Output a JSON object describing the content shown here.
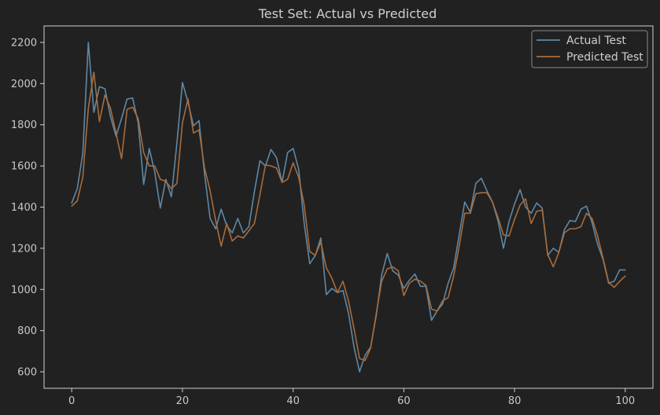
{
  "chart_data": {
    "type": "line",
    "title": "Test Set: Actual vs Predicted",
    "xlabel": "",
    "ylabel": "",
    "xlim": [
      -5,
      105
    ],
    "ylim": [
      520,
      2280
    ],
    "xticks": [
      0,
      20,
      40,
      60,
      80,
      100
    ],
    "yticks": [
      600,
      800,
      1000,
      1200,
      1400,
      1600,
      1800,
      2000,
      2200
    ],
    "grid": false,
    "legend_position": "top-right",
    "series": [
      {
        "name": "Actual Test",
        "color": "#5f88a6",
        "values": [
          1420,
          1490,
          1660,
          2200,
          1860,
          1985,
          1975,
          1840,
          1745,
          1830,
          1925,
          1930,
          1810,
          1510,
          1685,
          1570,
          1395,
          1535,
          1450,
          1710,
          2005,
          1910,
          1795,
          1820,
          1560,
          1345,
          1295,
          1390,
          1310,
          1275,
          1345,
          1275,
          1305,
          1475,
          1625,
          1600,
          1680,
          1640,
          1520,
          1665,
          1685,
          1585,
          1320,
          1125,
          1165,
          1250,
          975,
          1005,
          985,
          995,
          885,
          720,
          600,
          680,
          720,
          870,
          1070,
          1175,
          1090,
          1070,
          1005,
          1045,
          1075,
          1015,
          1015,
          850,
          895,
          930,
          1030,
          1105,
          1265,
          1425,
          1375,
          1515,
          1540,
          1480,
          1425,
          1335,
          1200,
          1330,
          1415,
          1485,
          1400,
          1370,
          1420,
          1395,
          1165,
          1200,
          1180,
          1290,
          1335,
          1330,
          1390,
          1405,
          1325,
          1220,
          1145,
          1030,
          1040,
          1095,
          1095
        ]
      },
      {
        "name": "Predicted Test",
        "color": "#a86c3c",
        "values": [
          1405,
          1430,
          1545,
          1880,
          2055,
          1815,
          1945,
          1880,
          1760,
          1635,
          1875,
          1885,
          1830,
          1665,
          1600,
          1600,
          1535,
          1525,
          1490,
          1515,
          1810,
          1925,
          1760,
          1775,
          1590,
          1480,
          1335,
          1210,
          1320,
          1235,
          1260,
          1250,
          1285,
          1320,
          1460,
          1605,
          1600,
          1590,
          1520,
          1535,
          1615,
          1545,
          1410,
          1185,
          1165,
          1230,
          1105,
          1055,
          985,
          1040,
          945,
          810,
          665,
          655,
          715,
          880,
          1040,
          1100,
          1110,
          1090,
          970,
          1030,
          1050,
          1040,
          1020,
          905,
          895,
          945,
          960,
          1065,
          1210,
          1370,
          1370,
          1465,
          1470,
          1470,
          1425,
          1350,
          1265,
          1260,
          1340,
          1410,
          1440,
          1320,
          1380,
          1385,
          1170,
          1110,
          1180,
          1275,
          1295,
          1295,
          1305,
          1370,
          1345,
          1260,
          1150,
          1035,
          1010,
          1040,
          1065
        ]
      }
    ]
  }
}
